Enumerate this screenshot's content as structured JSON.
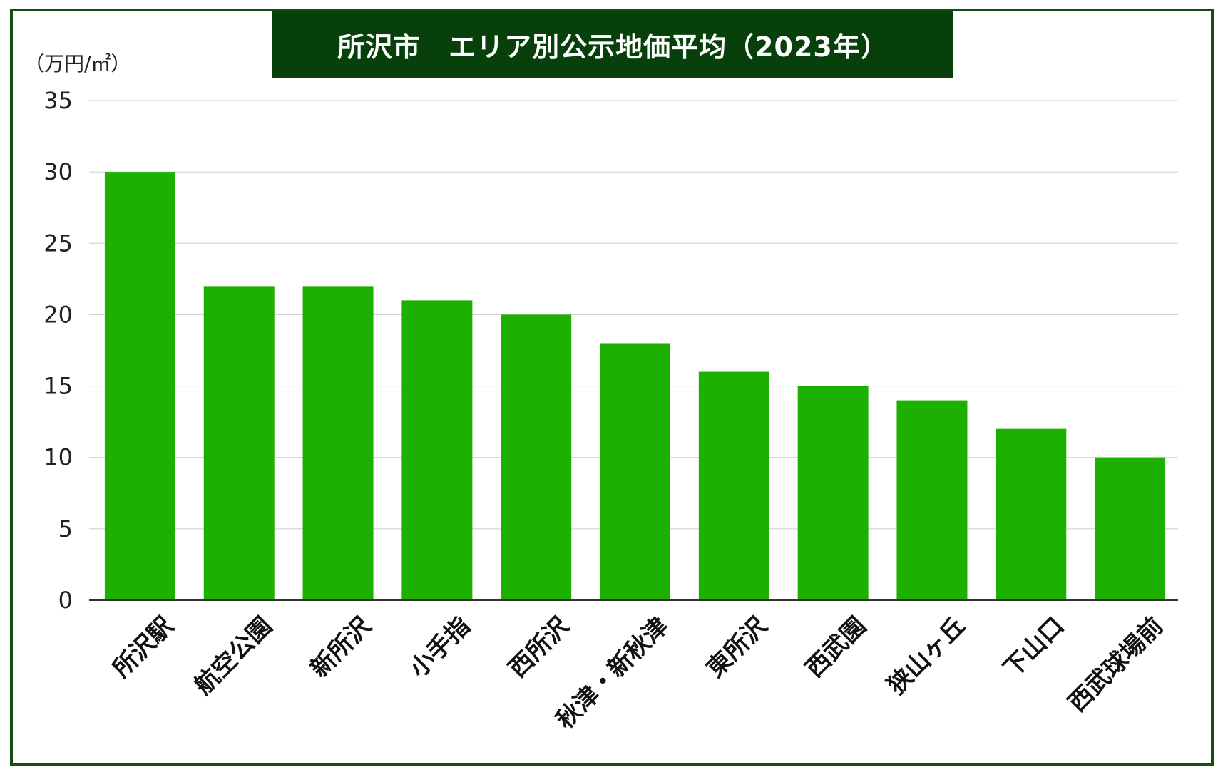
{
  "chart_data": {
    "type": "bar",
    "title": "所沢市　エリア別公示地価平均（2023年）",
    "ylabel": "（万円/㎡）",
    "xlabel": "",
    "categories": [
      "所沢駅",
      "航空公園",
      "新所沢",
      "小手指",
      "西所沢",
      "秋津・新秋津",
      "東所沢",
      "西武園",
      "狭山ヶ丘",
      "下山口",
      "西武球場前"
    ],
    "values": [
      30,
      22,
      22,
      21,
      20,
      18,
      16,
      15,
      14,
      12,
      10
    ],
    "ylim": [
      0,
      35
    ],
    "yticks": [
      0,
      5,
      10,
      15,
      20,
      25,
      30,
      35
    ],
    "grid": true,
    "legend": "none",
    "bar_color": "#1eb000",
    "title_bg_color": "#07400b",
    "frame_color": "#124d12"
  }
}
